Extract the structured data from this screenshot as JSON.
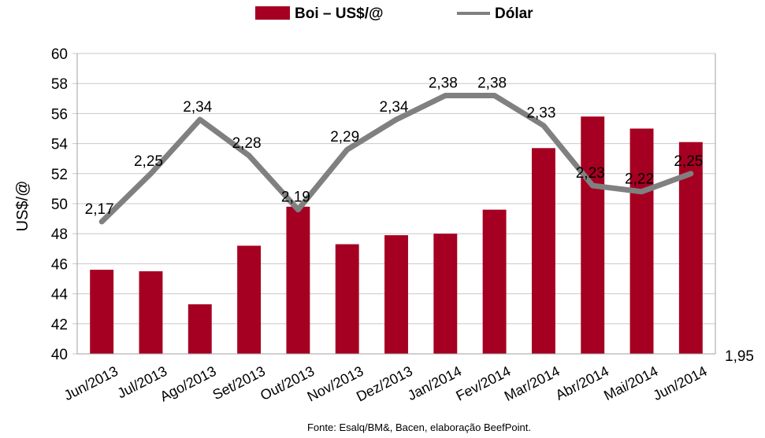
{
  "chart_data": {
    "type": "bar",
    "title": "",
    "legend": {
      "position": "top",
      "entries": [
        "Boi – US$/@",
        "Dólar"
      ]
    },
    "categories": [
      "Jun/2013",
      "Jul/2013",
      "Ago/2013",
      "Set/2013",
      "Out/2013",
      "Nov/2013",
      "Dez/2013",
      "Jan/2014",
      "Fev/2014",
      "Mar/2014",
      "Abr/2014",
      "Mai/2014",
      "Jun/2014"
    ],
    "series": [
      {
        "name": "Boi – US$/@",
        "type": "bar",
        "axis": "left",
        "color": "#a50021",
        "values": [
          45.6,
          45.5,
          43.3,
          47.2,
          49.8,
          47.3,
          47.9,
          48.0,
          49.6,
          53.7,
          55.8,
          55.0,
          54.1
        ]
      },
      {
        "name": "Dólar",
        "type": "line",
        "axis": "right",
        "color": "#808080",
        "values": [
          2.17,
          2.25,
          2.34,
          2.28,
          2.19,
          2.29,
          2.34,
          2.38,
          2.38,
          2.33,
          2.23,
          2.22,
          2.25
        ],
        "labels": [
          "2,17",
          "2,25",
          "2,34",
          "2,28",
          "2,19",
          "2,29",
          "2,34",
          "2,38",
          "2,38",
          "2,33",
          "2,23",
          "2,22",
          "2,25"
        ]
      }
    ],
    "ylabel": "US$/@",
    "ylim": [
      40,
      60
    ],
    "yticks": [
      "40",
      "42",
      "44",
      "46",
      "48",
      "50",
      "52",
      "54",
      "56",
      "58",
      "60"
    ],
    "y2lim": [
      1.95,
      2.45
    ],
    "y2ticks_shown": [
      "1,95"
    ],
    "grid": true,
    "source": "Fonte: Esalq/BM&, Bacen, elaboração BeefPoint."
  }
}
